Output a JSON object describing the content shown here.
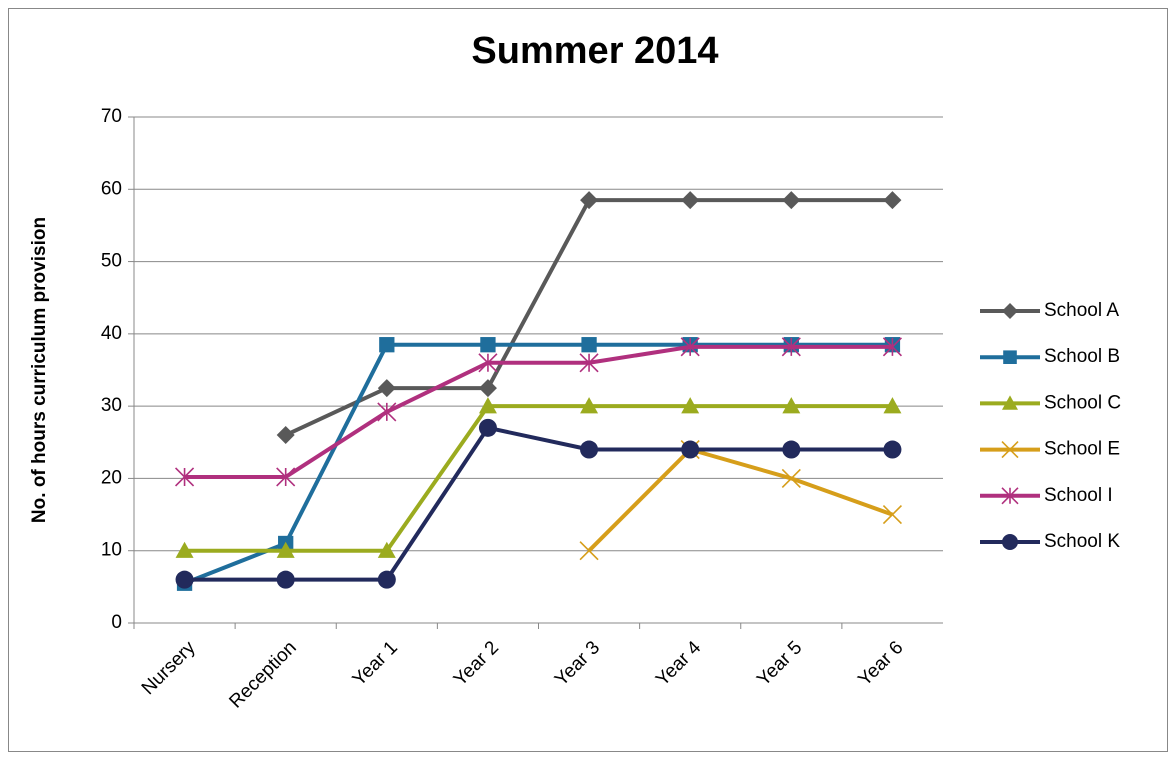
{
  "chart_data": {
    "type": "line",
    "title": "Summer 2014",
    "y_label": "No. of hours curriculum provision",
    "categories": [
      "Nursery",
      "Reception",
      "Year 1",
      "Year 2",
      "Year 3",
      "Year 4",
      "Year 5",
      "Year 6"
    ],
    "series": [
      {
        "name": "School A",
        "color": "#595959",
        "marker": "diamond",
        "values": [
          null,
          26,
          32.5,
          32.5,
          58.5,
          58.5,
          58.5,
          58.5
        ]
      },
      {
        "name": "School B",
        "color": "#1f6e9c",
        "marker": "square",
        "values": [
          5.5,
          11,
          38.5,
          38.5,
          38.5,
          38.5,
          38.5,
          38.5
        ]
      },
      {
        "name": "School C",
        "color": "#9bab1f",
        "marker": "triangle",
        "values": [
          10,
          10,
          10,
          30,
          30,
          30,
          30,
          30
        ]
      },
      {
        "name": "School E",
        "color": "#d69e1a",
        "marker": "x",
        "values": [
          null,
          null,
          null,
          null,
          10,
          24,
          20,
          15
        ]
      },
      {
        "name": "School I",
        "color": "#b0307e",
        "marker": "star",
        "values": [
          20.2,
          20.2,
          29.2,
          36,
          36,
          38.2,
          38.2,
          38.2
        ]
      },
      {
        "name": "School K",
        "color": "#222a5c",
        "marker": "circle",
        "values": [
          6,
          6,
          6,
          27,
          24,
          24,
          24,
          24
        ]
      }
    ],
    "ylim": [
      0,
      70
    ],
    "yticks": [
      0,
      10,
      20,
      30,
      40,
      50,
      60,
      70
    ],
    "grid": true,
    "legend": "right"
  }
}
